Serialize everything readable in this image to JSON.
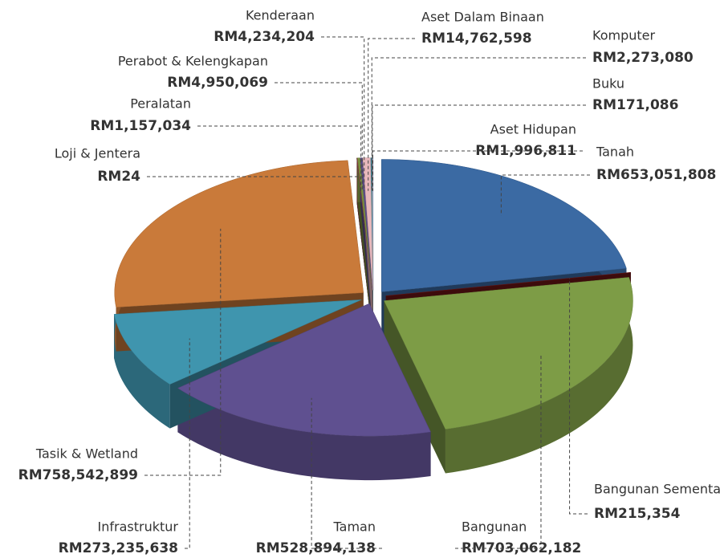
{
  "chart_data": {
    "type": "pie",
    "categories": [
      "Tanah",
      "Bangunan Sementara",
      "Bangunan",
      "Taman",
      "Infrastruktur",
      "Tasik & Wetland",
      "Loji & Jentera",
      "Peralatan",
      "Perabot & Kelengkapan",
      "Kenderaan",
      "Aset Dalam Binaan",
      "Komputer",
      "Buku",
      "Aset Hidupan"
    ],
    "values": [
      653051808,
      215354,
      703062182,
      528894138,
      273235638,
      758542899,
      24,
      1157034,
      4950069,
      4234204,
      14762598,
      2273080,
      171086,
      1996811
    ],
    "value_labels": [
      "RM653,051,808",
      "RM215,354",
      "RM703,062,182",
      "RM528,894,138",
      "RM273,235,638",
      "RM758,542,899",
      "RM24",
      "RM1,157,034",
      "RM4,950,069",
      "RM4,234,204",
      "RM14,762,598",
      "RM2,273,080",
      "RM171,086",
      "RM1,996,811"
    ],
    "colors": [
      "#3b6aa3",
      "#6e1616",
      "#7d9c46",
      "#5f5090",
      "#3f95ae",
      "#c97a3a",
      "#4a6fa5",
      "#9b3a3a",
      "#7a9040",
      "#5e4f8c",
      "#e8b8bc",
      "#3d94ad",
      "#d98a3e",
      "#a9b6d6"
    ]
  }
}
